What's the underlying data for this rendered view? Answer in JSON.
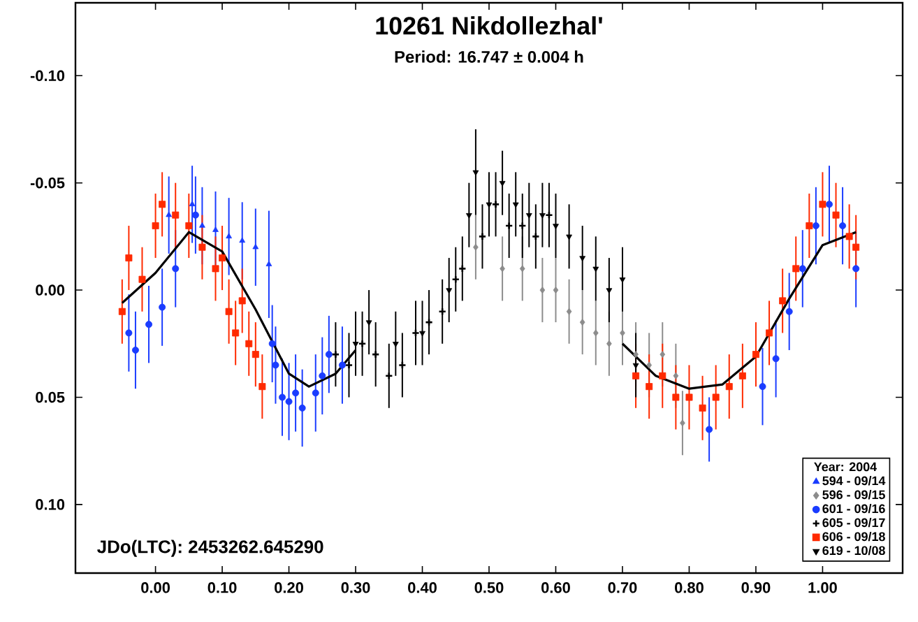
{
  "chart_data": {
    "type": "scatter",
    "title": "10261 Nikdollezhal'",
    "subtitle": "Period: 16.747 ± 0.004 h",
    "legend_title": "Year: 2004",
    "legend": "bottom right",
    "annotations": [
      "JDo(LTC): 2453262.645290"
    ],
    "xlim": [
      -0.12,
      1.12
    ],
    "ylim": [
      0.132,
      -0.134
    ],
    "xticks": [
      {
        "value": 0,
        "label": "0.00"
      },
      {
        "value": 0.1,
        "label": "0.10"
      },
      {
        "value": 0.2,
        "label": "0.20"
      },
      {
        "value": 0.3,
        "label": "0.30"
      },
      {
        "value": 0.4,
        "label": "0.40"
      },
      {
        "value": 0.5,
        "label": "0.50"
      },
      {
        "value": 0.6,
        "label": "0.60"
      },
      {
        "value": 0.7,
        "label": "0.70"
      },
      {
        "value": 0.8,
        "label": "0.80"
      },
      {
        "value": 0.9,
        "label": "0.90"
      },
      {
        "value": 1.0,
        "label": "1.00"
      }
    ],
    "yticks": [
      {
        "value": -0.1,
        "label": "-0.10"
      },
      {
        "value": -0.05,
        "label": "-0.05"
      },
      {
        "value": 0,
        "label": "0.00"
      },
      {
        "value": 0.05,
        "label": "0.05"
      },
      {
        "value": 0.1,
        "label": "0.10"
      }
    ],
    "series": [
      {
        "name": "594 - 09/14",
        "color": "#1a3cff",
        "marker": "triangle",
        "x": [
          0.02,
          0.055,
          0.07,
          0.09,
          0.11,
          0.13,
          0.15,
          0.17
        ],
        "values": [
          -0.035,
          -0.04,
          -0.03,
          -0.028,
          -0.025,
          -0.023,
          -0.02,
          -0.012
        ],
        "errors": [
          0.018,
          0.018,
          0.018,
          0.018,
          0.018,
          0.018,
          0.018,
          0.025
        ]
      },
      {
        "name": "596 - 09/15",
        "color": "#8c8c8c",
        "marker": "diamond",
        "x": [
          0.48,
          0.52,
          0.55,
          0.58,
          0.6,
          0.62,
          0.64,
          0.66,
          0.68,
          0.7,
          0.72,
          0.74,
          0.76,
          0.78,
          0.79
        ],
        "values": [
          -0.02,
          -0.01,
          -0.01,
          0.0,
          0.0,
          0.01,
          0.015,
          0.02,
          0.025,
          0.02,
          0.03,
          0.035,
          0.03,
          0.04,
          0.062
        ],
        "errors": [
          0.015,
          0.015,
          0.015,
          0.015,
          0.015,
          0.015,
          0.015,
          0.015,
          0.015,
          0.015,
          0.015,
          0.015,
          0.015,
          0.015,
          0.015
        ]
      },
      {
        "name": "601 - 09/16",
        "color": "#1a3cff",
        "marker": "circle",
        "x": [
          -0.04,
          -0.03,
          -0.01,
          0.01,
          0.03,
          0.06,
          0.175,
          0.18,
          0.19,
          0.2,
          0.21,
          0.22,
          0.24,
          0.25,
          0.26,
          0.28,
          0.83,
          0.91,
          0.93,
          0.95,
          0.97,
          0.99,
          1.01,
          1.03,
          1.05
        ],
        "values": [
          0.02,
          0.028,
          0.016,
          0.008,
          -0.01,
          -0.035,
          0.025,
          0.035,
          0.05,
          0.052,
          0.048,
          0.055,
          0.048,
          0.04,
          0.03,
          0.035,
          0.065,
          0.045,
          0.032,
          0.01,
          -0.01,
          -0.03,
          -0.04,
          -0.03,
          -0.01
        ],
        "errors": [
          0.018,
          0.018,
          0.018,
          0.018,
          0.018,
          0.018,
          0.018,
          0.018,
          0.018,
          0.018,
          0.018,
          0.018,
          0.018,
          0.018,
          0.018,
          0.018,
          0.015,
          0.018,
          0.018,
          0.018,
          0.018,
          0.018,
          0.018,
          0.018,
          0.018
        ]
      },
      {
        "name": "605 - 09/17",
        "color": "#000000",
        "marker": "cross",
        "x": [
          0.27,
          0.29,
          0.31,
          0.33,
          0.35,
          0.37,
          0.39,
          0.41,
          0.43,
          0.45,
          0.46,
          0.49,
          0.51,
          0.53,
          0.55,
          0.57,
          0.59
        ],
        "values": [
          0.03,
          0.035,
          0.025,
          0.03,
          0.04,
          0.035,
          0.02,
          0.015,
          0.01,
          -0.005,
          -0.01,
          -0.025,
          -0.04,
          -0.03,
          -0.03,
          -0.025,
          -0.035
        ],
        "errors": [
          0.015,
          0.015,
          0.015,
          0.015,
          0.015,
          0.015,
          0.015,
          0.015,
          0.015,
          0.015,
          0.015,
          0.015,
          0.015,
          0.015,
          0.015,
          0.015,
          0.015
        ]
      },
      {
        "name": "606 - 09/18",
        "color": "#ff2a00",
        "marker": "square",
        "x": [
          -0.05,
          -0.04,
          -0.02,
          0.0,
          0.01,
          0.03,
          0.05,
          0.07,
          0.09,
          0.1,
          0.11,
          0.12,
          0.13,
          0.14,
          0.15,
          0.16,
          0.72,
          0.74,
          0.76,
          0.78,
          0.8,
          0.82,
          0.84,
          0.86,
          0.88,
          0.9,
          0.92,
          0.94,
          0.96,
          0.98,
          1.0,
          1.02,
          1.04,
          1.05
        ],
        "values": [
          0.01,
          -0.015,
          -0.005,
          -0.03,
          -0.04,
          -0.035,
          -0.03,
          -0.02,
          -0.01,
          -0.015,
          0.01,
          0.02,
          0.005,
          0.025,
          0.03,
          0.045,
          0.04,
          0.045,
          0.04,
          0.05,
          0.05,
          0.055,
          0.05,
          0.045,
          0.04,
          0.03,
          0.02,
          0.005,
          -0.01,
          -0.03,
          -0.04,
          -0.035,
          -0.025,
          -0.02
        ],
        "errors": [
          0.015,
          0.015,
          0.015,
          0.015,
          0.015,
          0.015,
          0.015,
          0.015,
          0.015,
          0.015,
          0.015,
          0.015,
          0.015,
          0.015,
          0.015,
          0.015,
          0.015,
          0.015,
          0.015,
          0.015,
          0.015,
          0.015,
          0.015,
          0.015,
          0.015,
          0.015,
          0.015,
          0.015,
          0.015,
          0.015,
          0.015,
          0.015,
          0.015,
          0.015
        ]
      },
      {
        "name": "619 - 10/08",
        "color": "#000000",
        "marker": "triangle-down",
        "x": [
          0.3,
          0.32,
          0.36,
          0.4,
          0.44,
          0.47,
          0.48,
          0.5,
          0.52,
          0.54,
          0.56,
          0.58,
          0.6,
          0.62,
          0.64,
          0.66,
          0.68,
          0.7,
          0.72
        ],
        "values": [
          0.025,
          0.015,
          0.025,
          0.02,
          0.0,
          -0.035,
          -0.055,
          -0.04,
          -0.05,
          -0.04,
          -0.035,
          -0.035,
          -0.03,
          -0.025,
          -0.015,
          -0.01,
          0.0,
          -0.005,
          0.035
        ],
        "errors": [
          0.015,
          0.015,
          0.015,
          0.015,
          0.015,
          0.015,
          0.02,
          0.015,
          0.015,
          0.015,
          0.015,
          0.015,
          0.015,
          0.015,
          0.015,
          0.015,
          0.015,
          0.015,
          0.015
        ]
      },
      {
        "type": "line",
        "color": "#000000",
        "marker": "none",
        "x": [
          -0.05,
          0.0,
          0.05,
          0.1,
          0.15,
          0.2,
          0.23,
          0.27,
          0.3,
          0.5,
          0.7,
          0.75,
          0.8,
          0.85,
          0.9,
          0.95,
          1.0,
          1.05
        ],
        "values": [
          0.006,
          -0.008,
          -0.027,
          -0.018,
          0.009,
          0.039,
          0.045,
          0.039,
          0.028,
          null,
          0.025,
          0.04,
          0.046,
          0.044,
          0.031,
          0.004,
          -0.021,
          -0.027
        ]
      }
    ]
  }
}
